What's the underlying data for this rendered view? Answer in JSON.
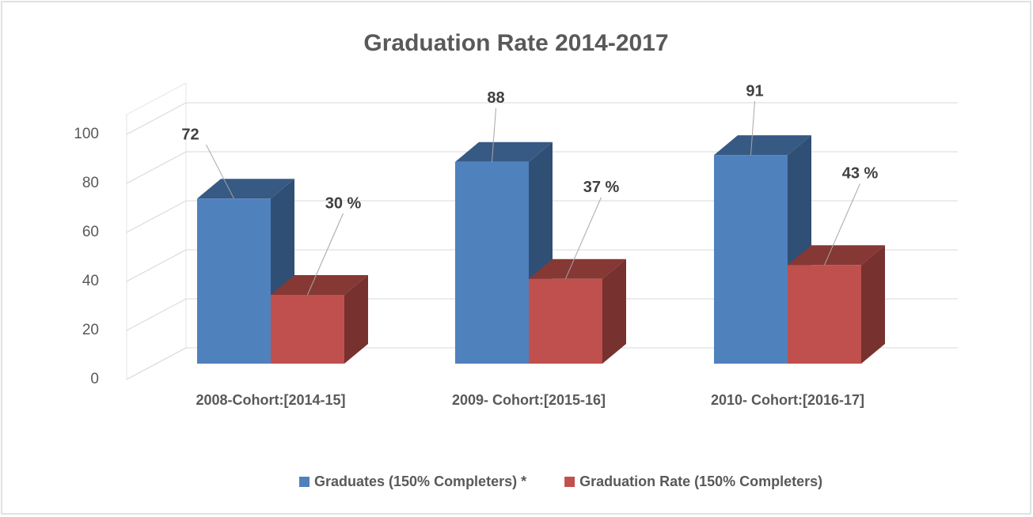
{
  "chart_data": {
    "type": "bar3d",
    "title": "Graduation Rate 2014-2017",
    "categories": [
      "2008-Cohort:[2014-15]",
      "2009- Cohort:[2015-16]",
      "2010- Cohort:[2016-17]"
    ],
    "series": [
      {
        "name": "Graduates (150% Completers) *",
        "color": "#4f81bd",
        "values": [
          72,
          88,
          91
        ]
      },
      {
        "name": "Graduation Rate (150% Completers)",
        "color": "#c0504d",
        "values": [
          30,
          37,
          43
        ],
        "value_labels": [
          "30 %",
          "37 %",
          "43 %"
        ]
      }
    ],
    "ylim": [
      0,
      100
    ],
    "yticks": [
      0,
      20,
      40,
      60,
      80,
      100
    ],
    "grid": true,
    "legend": "bottom"
  }
}
